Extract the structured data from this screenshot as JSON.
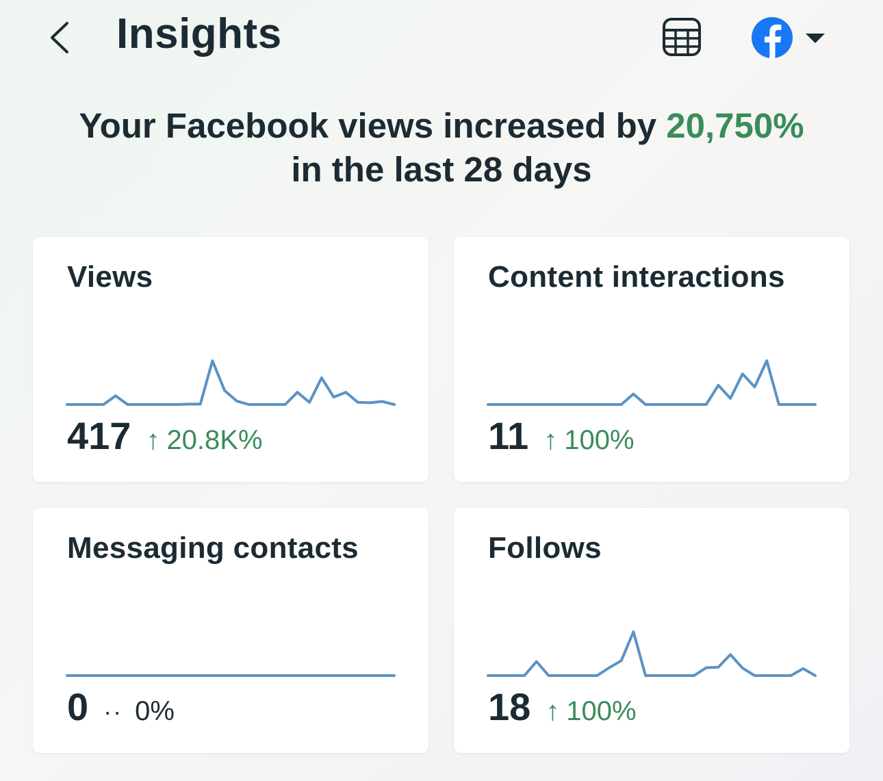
{
  "header": {
    "title": "Insights",
    "back_icon": "chevron-left-icon",
    "calculator_icon": "calculator-icon",
    "platform_icon": "facebook-icon",
    "dropdown_icon": "caret-down-icon"
  },
  "headline": {
    "prefix": "Your Facebook views increased by ",
    "highlight": "20,750%",
    "suffix": "in the last 28 days",
    "highlight_color": "#3a8c5a"
  },
  "colors": {
    "text": "#1c2b33",
    "positive": "#3a8c5a",
    "sparkline": "#5b93c4",
    "facebook": "#1877f2"
  },
  "cards": [
    {
      "title": "Views",
      "value": "417",
      "change": "20.8K%",
      "trend": "up",
      "spark": [
        0,
        0,
        0,
        0,
        0.2,
        0,
        0,
        0,
        0,
        0,
        0.01,
        0.01,
        1,
        0.32,
        0.08,
        0,
        0,
        0,
        0,
        0.28,
        0.05,
        0.61,
        0.17,
        0.28,
        0.05,
        0.04,
        0.07,
        0
      ]
    },
    {
      "title": "Content interactions",
      "value": "11",
      "change": "100%",
      "trend": "up",
      "spark": [
        0,
        0,
        0,
        0,
        0,
        0,
        0,
        0,
        0,
        0,
        0,
        0,
        0.24,
        0,
        0,
        0,
        0,
        0,
        0,
        0.44,
        0.14,
        0.7,
        0.4,
        1,
        0,
        0,
        0,
        0
      ]
    },
    {
      "title": "Messaging contacts",
      "value": "0",
      "change": "0%",
      "trend": "flat",
      "spark": [
        0,
        0,
        0,
        0,
        0,
        0,
        0,
        0,
        0,
        0,
        0,
        0,
        0,
        0,
        0,
        0,
        0,
        0,
        0,
        0,
        0,
        0,
        0,
        0,
        0,
        0,
        0,
        0
      ]
    },
    {
      "title": "Follows",
      "value": "18",
      "change": "100%",
      "trend": "up",
      "spark": [
        0,
        0,
        0,
        0,
        0.32,
        0,
        0,
        0,
        0,
        0,
        0.18,
        0.34,
        1,
        0,
        0,
        0,
        0,
        0,
        0.18,
        0.19,
        0.48,
        0.17,
        0,
        0,
        0,
        0,
        0.16,
        0
      ]
    }
  ]
}
